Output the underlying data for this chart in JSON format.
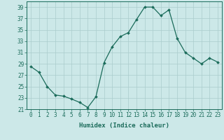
{
  "x": [
    0,
    1,
    2,
    3,
    4,
    5,
    6,
    7,
    8,
    9,
    10,
    11,
    12,
    13,
    14,
    15,
    16,
    17,
    18,
    19,
    20,
    21,
    22,
    23
  ],
  "y": [
    28.5,
    27.5,
    25.0,
    23.5,
    23.3,
    22.8,
    22.2,
    21.3,
    23.2,
    29.2,
    32.0,
    33.8,
    34.5,
    36.8,
    39.0,
    39.0,
    37.5,
    38.5,
    33.5,
    31.0,
    30.0,
    29.0,
    30.0,
    29.3
  ],
  "xlabel": "Humidex (Indice chaleur)",
  "ylabel": "",
  "xlim": [
    -0.5,
    23.5
  ],
  "ylim": [
    21,
    40
  ],
  "yticks": [
    21,
    23,
    25,
    27,
    29,
    31,
    33,
    35,
    37,
    39
  ],
  "xticks": [
    0,
    1,
    2,
    3,
    4,
    5,
    6,
    7,
    8,
    9,
    10,
    11,
    12,
    13,
    14,
    15,
    16,
    17,
    18,
    19,
    20,
    21,
    22,
    23
  ],
  "line_color": "#1a6b5a",
  "marker": "D",
  "marker_size": 2.0,
  "bg_color": "#cce8e8",
  "grid_color": "#aacccc",
  "label_fontsize": 6.5,
  "tick_fontsize": 5.5
}
